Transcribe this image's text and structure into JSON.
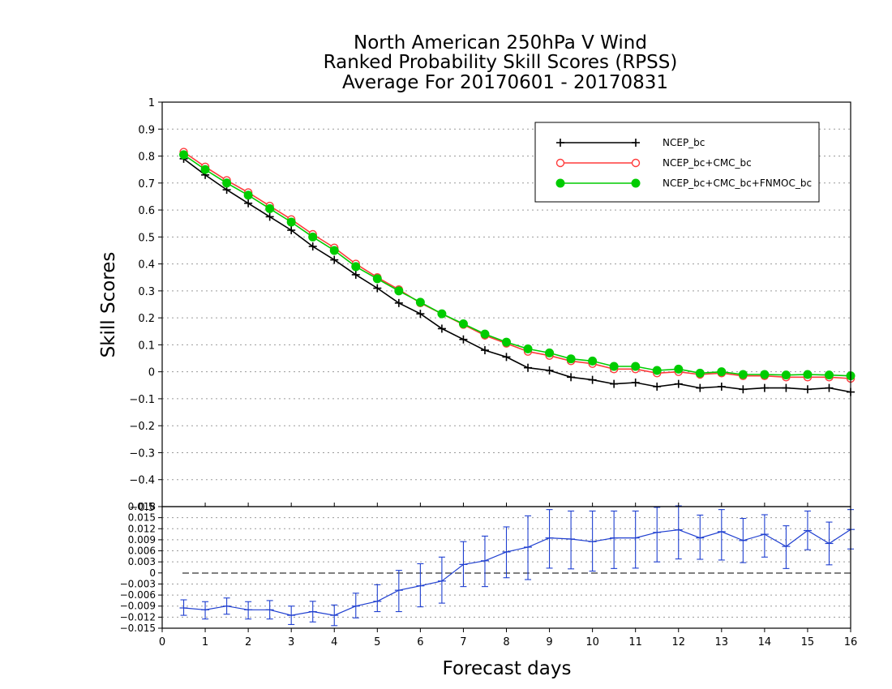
{
  "chart_data": [
    {
      "type": "line",
      "title": [
        "North American 250hPa V Wind",
        "Ranked Probability Skill Scores (RPSS)",
        "Average For 20170601 - 20170831"
      ],
      "xlabel": "",
      "ylabel": "Skill Scores",
      "xlim": [
        0,
        16
      ],
      "ylim": [
        -0.5,
        1
      ],
      "yticks": [
        1,
        0.9,
        0.8,
        0.7,
        0.6,
        0.5,
        0.4,
        0.3,
        0.2,
        0.1,
        0,
        -0.1,
        -0.2,
        -0.3,
        -0.4,
        -0.5
      ],
      "ytick_labels": [
        "1",
        "0.9",
        "0.8",
        "0.7",
        "0.6",
        "0.5",
        "0.4",
        "0.3",
        "0.2",
        "0.1",
        "0",
        "−0.1",
        "−0.2",
        "−0.3",
        "−0.4",
        "−0.5"
      ],
      "grid": true,
      "legend_position": "top-right",
      "x": [
        0.5,
        1,
        1.5,
        2,
        2.5,
        3,
        3.5,
        4,
        4.5,
        5,
        5.5,
        6,
        6.5,
        7,
        7.5,
        8,
        8.5,
        9,
        9.5,
        10,
        10.5,
        11,
        11.5,
        12,
        12.5,
        13,
        13.5,
        14,
        14.5,
        15,
        15.5,
        16
      ],
      "series": [
        {
          "name": "NCEP_bc",
          "color": "#000000",
          "marker": "plus",
          "values": [
            0.79,
            0.73,
            0.675,
            0.625,
            0.575,
            0.525,
            0.465,
            0.415,
            0.36,
            0.31,
            0.255,
            0.215,
            0.16,
            0.12,
            0.08,
            0.055,
            0.015,
            0.005,
            -0.02,
            -0.03,
            -0.045,
            -0.04,
            -0.055,
            -0.045,
            -0.06,
            -0.055,
            -0.065,
            -0.06,
            -0.06,
            -0.065,
            -0.06,
            -0.075
          ]
        },
        {
          "name": "NCEP_bc+CMC_bc",
          "color": "#ff3b3b",
          "marker": "open-circle",
          "values": [
            0.815,
            0.76,
            0.71,
            0.665,
            0.615,
            0.565,
            0.51,
            0.46,
            0.4,
            0.35,
            0.305,
            0.255,
            0.215,
            0.175,
            0.135,
            0.105,
            0.075,
            0.06,
            0.04,
            0.03,
            0.01,
            0.01,
            -0.005,
            0.0,
            -0.01,
            -0.005,
            -0.015,
            -0.015,
            -0.02,
            -0.02,
            -0.02,
            -0.025
          ]
        },
        {
          "name": "NCEP_bc+CMC_bc+FNMOC_bc",
          "color": "#00cc00",
          "marker": "filled-circle",
          "values": [
            0.805,
            0.75,
            0.7,
            0.655,
            0.605,
            0.555,
            0.5,
            0.45,
            0.39,
            0.345,
            0.3,
            0.258,
            0.215,
            0.178,
            0.14,
            0.11,
            0.085,
            0.07,
            0.048,
            0.04,
            0.02,
            0.02,
            0.005,
            0.01,
            -0.005,
            0.0,
            -0.01,
            -0.01,
            -0.012,
            -0.01,
            -0.012,
            -0.015
          ]
        }
      ]
    },
    {
      "type": "line",
      "xlabel": "Forecast days",
      "ylabel": "",
      "xlim": [
        0,
        16
      ],
      "ylim": [
        -0.015,
        0.018
      ],
      "xticks": [
        0,
        1,
        2,
        3,
        4,
        5,
        6,
        7,
        8,
        9,
        10,
        11,
        12,
        13,
        14,
        15,
        16
      ],
      "xtick_labels": [
        "0",
        "1",
        "2",
        "3",
        "4",
        "5",
        "6",
        "7",
        "8",
        "9",
        "10",
        "11",
        "12",
        "13",
        "14",
        "15",
        "16"
      ],
      "yticks": [
        0.018,
        0.015,
        0.012,
        0.009,
        0.006,
        0.003,
        0,
        -0.003,
        -0.006,
        -0.009,
        -0.012,
        -0.015
      ],
      "ytick_labels": [
        "0.018",
        "0.015",
        "0.012",
        "0.009",
        "0.006",
        "0.003",
        "0",
        "−0.003",
        "−0.006",
        "−0.009",
        "−0.012",
        "−0.015"
      ],
      "grid": true,
      "zero_line": "dashed",
      "x": [
        0.5,
        1,
        1.5,
        2,
        2.5,
        3,
        3.5,
        4,
        4.5,
        5,
        5.5,
        6,
        6.5,
        7,
        7.5,
        8,
        8.5,
        9,
        9.5,
        10,
        10.5,
        11,
        11.5,
        12,
        12.5,
        13,
        13.5,
        14,
        14.5,
        15,
        15.5,
        16
      ],
      "series": [
        {
          "color": "#1f3fd0",
          "values": [
            -0.0095,
            -0.01,
            -0.009,
            -0.01,
            -0.01,
            -0.0115,
            -0.0105,
            -0.0115,
            -0.009,
            -0.0077,
            -0.0047,
            -0.0035,
            -0.0022,
            0.0023,
            0.0033,
            0.0057,
            0.007,
            0.0095,
            0.0092,
            0.0085,
            0.0095,
            0.0095,
            0.011,
            0.0117,
            0.0095,
            0.0112,
            0.0088,
            0.0105,
            0.0072,
            0.0115,
            0.008,
            0.0118
          ],
          "error_low": [
            -0.0115,
            -0.0125,
            -0.0112,
            -0.0125,
            -0.0125,
            -0.014,
            -0.0133,
            -0.0143,
            -0.0122,
            -0.0105,
            -0.0105,
            -0.0092,
            -0.0082,
            -0.0037,
            -0.0037,
            -0.0013,
            -0.0018,
            0.0013,
            0.0011,
            0.0005,
            0.0012,
            0.0013,
            0.003,
            0.0038,
            0.0037,
            0.0035,
            0.0028,
            0.0043,
            0.0012,
            0.0063,
            0.0022,
            0.0065
          ],
          "error_high": [
            -0.0073,
            -0.0078,
            -0.0068,
            -0.0078,
            -0.0075,
            -0.009,
            -0.0077,
            -0.0087,
            -0.0055,
            -0.0032,
            0.0007,
            0.0025,
            0.0043,
            0.0085,
            0.01,
            0.0125,
            0.0155,
            0.0172,
            0.0168,
            0.0168,
            0.0168,
            0.0168,
            0.0178,
            0.0182,
            0.0157,
            0.0172,
            0.0148,
            0.0158,
            0.0128,
            0.0168,
            0.0138,
            0.0172
          ]
        }
      ]
    }
  ]
}
